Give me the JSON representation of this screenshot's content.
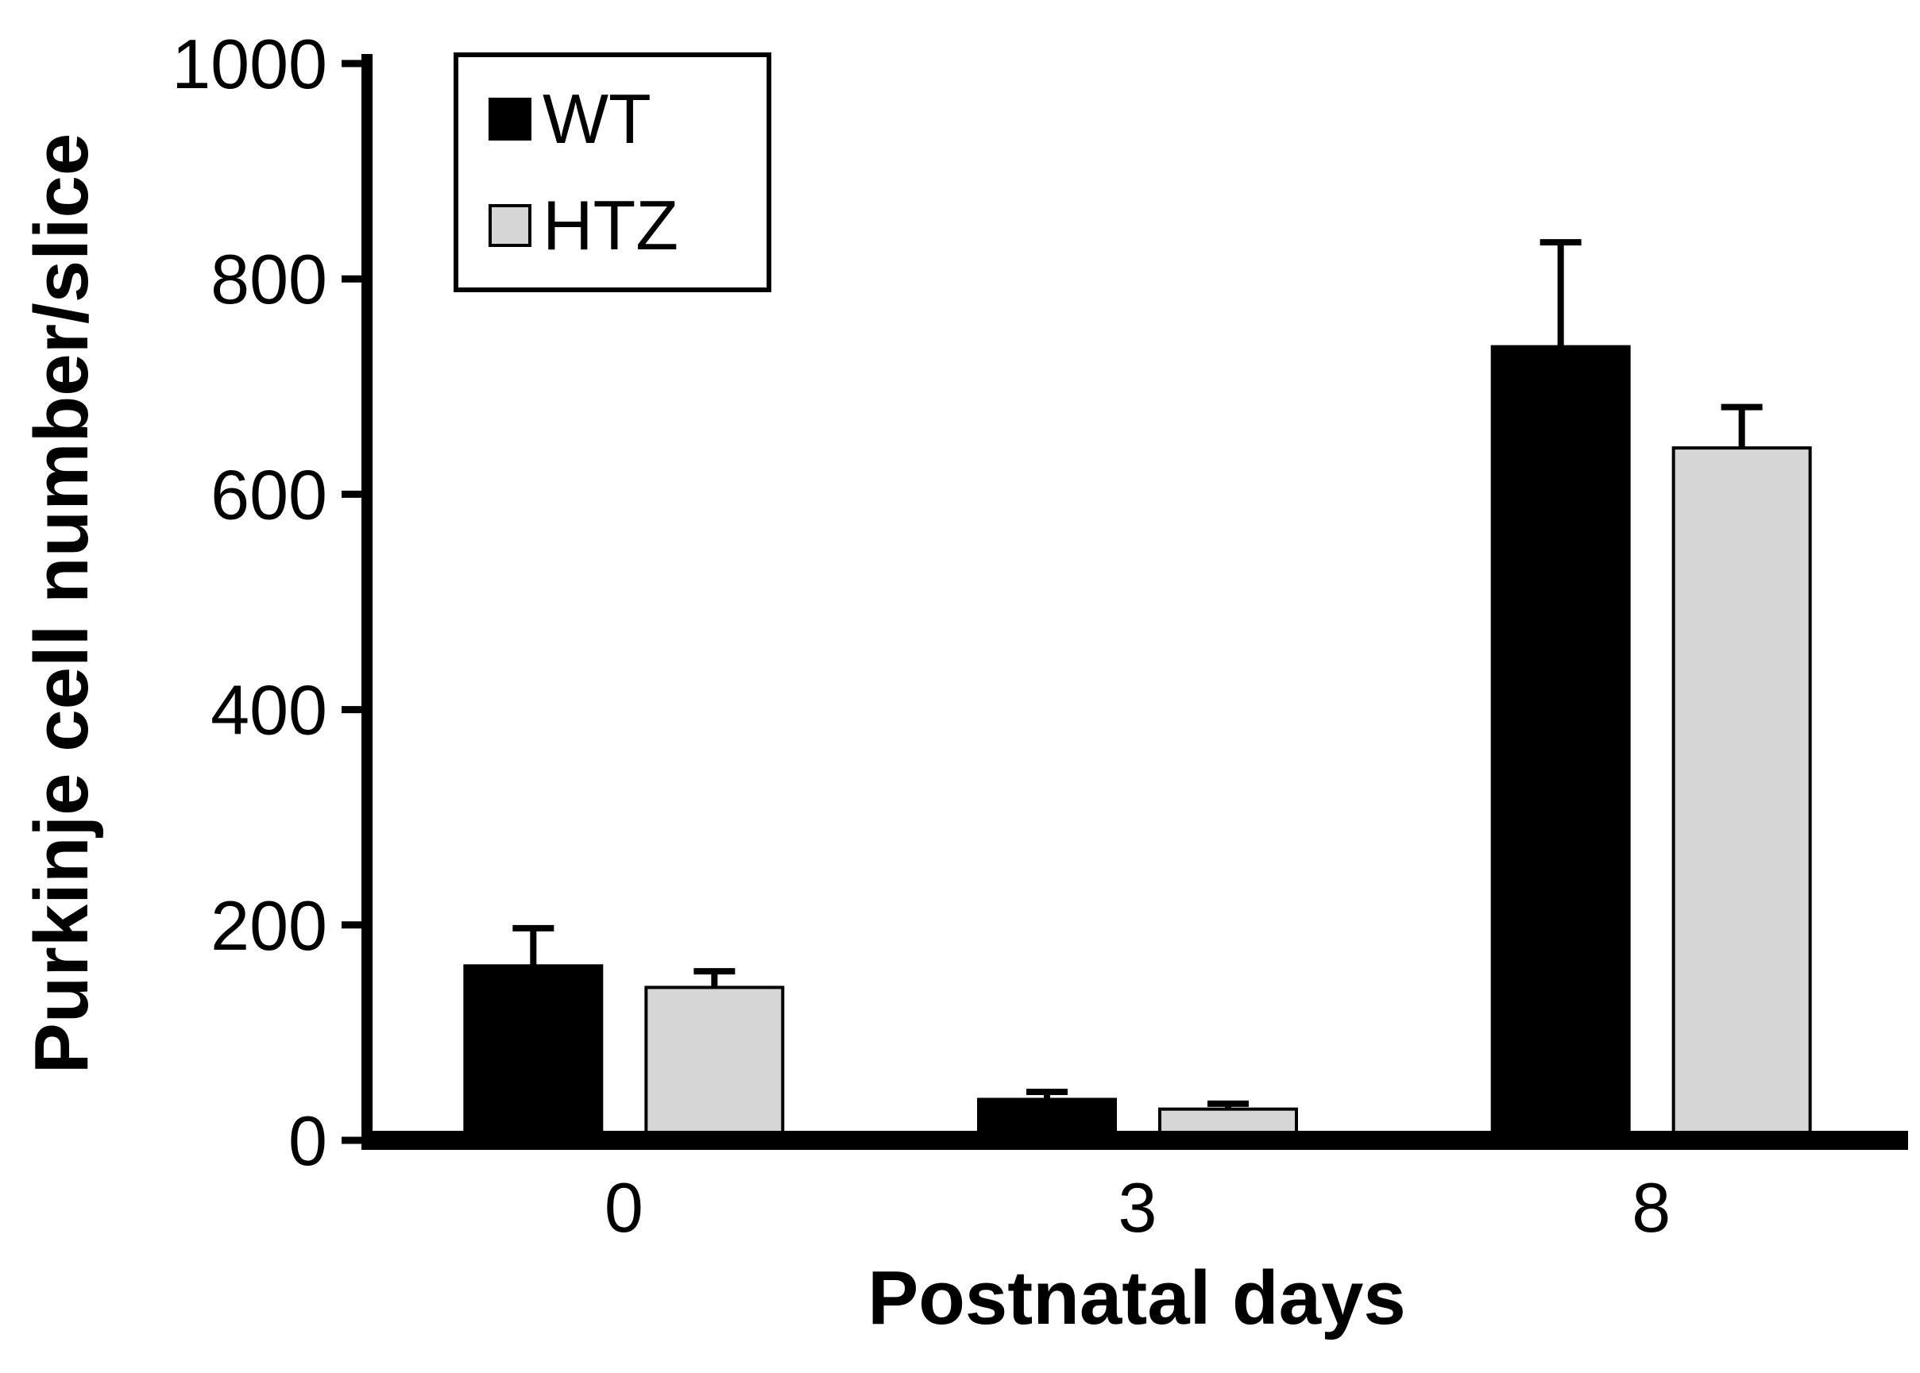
{
  "figure": {
    "ylabel": "Purkinje cell number/slice",
    "xlabel": "Postnatal days"
  },
  "legend": {
    "items": [
      {
        "label": "WT",
        "color": "#000000",
        "border": "#000000"
      },
      {
        "label": "HTZ",
        "color": "#d6d6d6",
        "border": "#000000"
      }
    ]
  },
  "chart_data": {
    "type": "bar",
    "title": "",
    "categories": [
      "0",
      "3",
      "8"
    ],
    "series": [
      {
        "name": "WT",
        "color": "#000000",
        "values": [
          162,
          38,
          737
        ],
        "errors": [
          35,
          7,
          97
        ]
      },
      {
        "name": "HTZ",
        "color": "#d6d6d6",
        "values": [
          142,
          29,
          643
        ],
        "errors": [
          15,
          5,
          38
        ]
      }
    ],
    "xlabel": "Postnatal days",
    "ylabel": "Purkinje cell number/slice",
    "ylim": [
      0,
      1000
    ],
    "yticks": [
      0,
      200,
      400,
      600,
      800,
      1000
    ],
    "grid": false,
    "legend_position": "upper-left",
    "error_bars": "upper",
    "axis_color": "#000000"
  }
}
